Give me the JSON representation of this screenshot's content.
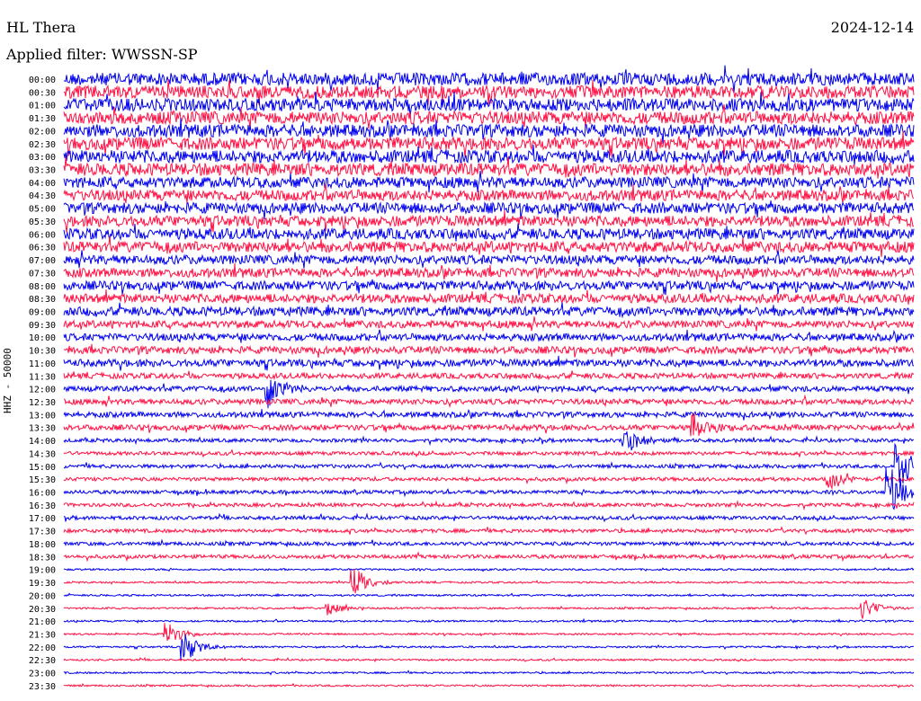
{
  "header": {
    "station": "HL Thera",
    "date": "2024-12-14",
    "filter": "Applied filter: WWSSN-SP"
  },
  "chart_data": {
    "type": "line",
    "title": "HL Thera",
    "subtitle": "Applied filter: WWSSN-SP",
    "ylabel": "HHZ - 50000",
    "colors": [
      "#0000ee",
      "#ff1144"
    ],
    "row_labels": [
      "00:00",
      "00:30",
      "01:00",
      "01:30",
      "02:00",
      "02:30",
      "03:00",
      "03:30",
      "04:00",
      "04:30",
      "05:00",
      "05:30",
      "06:00",
      "06:30",
      "07:00",
      "07:30",
      "08:00",
      "08:30",
      "09:00",
      "09:30",
      "10:00",
      "10:30",
      "11:00",
      "11:30",
      "12:00",
      "12:30",
      "13:00",
      "13:30",
      "14:00",
      "14:30",
      "15:00",
      "15:30",
      "16:00",
      "16:30",
      "17:00",
      "17:30",
      "18:00",
      "18:30",
      "19:00",
      "19:30",
      "20:00",
      "20:30",
      "21:00",
      "21:30",
      "22:00",
      "22:30",
      "23:00",
      "23:30"
    ],
    "noise_level": [
      7,
      7,
      7,
      7,
      7,
      7,
      7,
      7,
      6,
      6,
      6,
      6,
      6,
      6,
      5,
      5,
      5,
      5,
      5,
      4,
      4,
      4,
      4,
      3,
      3,
      3,
      3,
      3,
      2,
      2,
      2,
      2,
      2,
      2,
      2,
      2,
      2,
      2,
      1,
      1,
      1,
      1,
      1,
      1,
      1,
      1,
      1,
      1
    ],
    "events": [
      {
        "row": 24,
        "x": 0.24,
        "amp": 6
      },
      {
        "row": 27,
        "x": 0.74,
        "amp": 4
      },
      {
        "row": 28,
        "x": 0.66,
        "amp": 4
      },
      {
        "row": 30,
        "x": 0.98,
        "amp": 8
      },
      {
        "row": 31,
        "x": 0.9,
        "amp": 3
      },
      {
        "row": 32,
        "x": 0.97,
        "amp": 8
      },
      {
        "row": 39,
        "x": 0.34,
        "amp": 5
      },
      {
        "row": 41,
        "x": 0.31,
        "amp": 2
      },
      {
        "row": 41,
        "x": 0.94,
        "amp": 3
      },
      {
        "row": 43,
        "x": 0.12,
        "amp": 4
      },
      {
        "row": 44,
        "x": 0.14,
        "amp": 5
      }
    ]
  }
}
